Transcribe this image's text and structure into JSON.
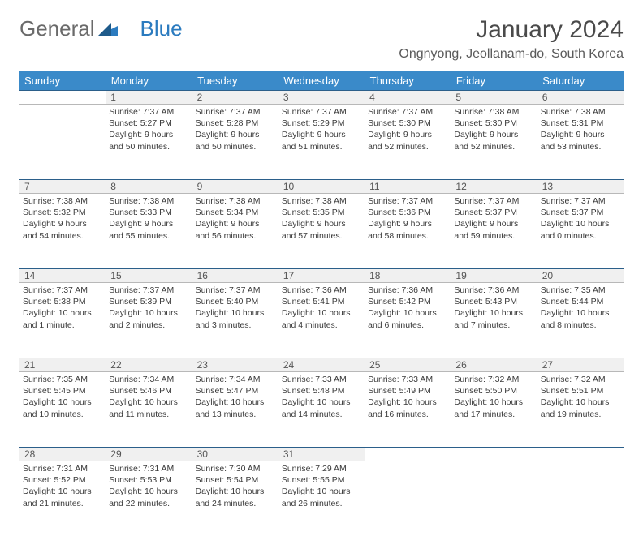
{
  "logo": {
    "general": "General",
    "blue": "Blue"
  },
  "title": "January 2024",
  "location": "Ongnyong, Jeollanam-do, South Korea",
  "colors": {
    "header_bg": "#3a8ac9",
    "header_text": "#ffffff",
    "daynum_bg": "#f0f0f0",
    "daynum_border_top": "#2b5f8a",
    "daynum_border_bottom": "#b8b8b8",
    "body_text": "#3a3a3a",
    "logo_gray": "#6a6a6a",
    "logo_blue": "#2b7bbf"
  },
  "weekdays": [
    "Sunday",
    "Monday",
    "Tuesday",
    "Wednesday",
    "Thursday",
    "Friday",
    "Saturday"
  ],
  "weeks": [
    {
      "nums": [
        "",
        "1",
        "2",
        "3",
        "4",
        "5",
        "6"
      ],
      "cells": [
        {
          "empty": true
        },
        {
          "sunrise": "Sunrise: 7:37 AM",
          "sunset": "Sunset: 5:27 PM",
          "daylight": "Daylight: 9 hours and 50 minutes."
        },
        {
          "sunrise": "Sunrise: 7:37 AM",
          "sunset": "Sunset: 5:28 PM",
          "daylight": "Daylight: 9 hours and 50 minutes."
        },
        {
          "sunrise": "Sunrise: 7:37 AM",
          "sunset": "Sunset: 5:29 PM",
          "daylight": "Daylight: 9 hours and 51 minutes."
        },
        {
          "sunrise": "Sunrise: 7:37 AM",
          "sunset": "Sunset: 5:30 PM",
          "daylight": "Daylight: 9 hours and 52 minutes."
        },
        {
          "sunrise": "Sunrise: 7:38 AM",
          "sunset": "Sunset: 5:30 PM",
          "daylight": "Daylight: 9 hours and 52 minutes."
        },
        {
          "sunrise": "Sunrise: 7:38 AM",
          "sunset": "Sunset: 5:31 PM",
          "daylight": "Daylight: 9 hours and 53 minutes."
        }
      ]
    },
    {
      "nums": [
        "7",
        "8",
        "9",
        "10",
        "11",
        "12",
        "13"
      ],
      "cells": [
        {
          "sunrise": "Sunrise: 7:38 AM",
          "sunset": "Sunset: 5:32 PM",
          "daylight": "Daylight: 9 hours and 54 minutes."
        },
        {
          "sunrise": "Sunrise: 7:38 AM",
          "sunset": "Sunset: 5:33 PM",
          "daylight": "Daylight: 9 hours and 55 minutes."
        },
        {
          "sunrise": "Sunrise: 7:38 AM",
          "sunset": "Sunset: 5:34 PM",
          "daylight": "Daylight: 9 hours and 56 minutes."
        },
        {
          "sunrise": "Sunrise: 7:38 AM",
          "sunset": "Sunset: 5:35 PM",
          "daylight": "Daylight: 9 hours and 57 minutes."
        },
        {
          "sunrise": "Sunrise: 7:37 AM",
          "sunset": "Sunset: 5:36 PM",
          "daylight": "Daylight: 9 hours and 58 minutes."
        },
        {
          "sunrise": "Sunrise: 7:37 AM",
          "sunset": "Sunset: 5:37 PM",
          "daylight": "Daylight: 9 hours and 59 minutes."
        },
        {
          "sunrise": "Sunrise: 7:37 AM",
          "sunset": "Sunset: 5:37 PM",
          "daylight": "Daylight: 10 hours and 0 minutes."
        }
      ]
    },
    {
      "nums": [
        "14",
        "15",
        "16",
        "17",
        "18",
        "19",
        "20"
      ],
      "cells": [
        {
          "sunrise": "Sunrise: 7:37 AM",
          "sunset": "Sunset: 5:38 PM",
          "daylight": "Daylight: 10 hours and 1 minute."
        },
        {
          "sunrise": "Sunrise: 7:37 AM",
          "sunset": "Sunset: 5:39 PM",
          "daylight": "Daylight: 10 hours and 2 minutes."
        },
        {
          "sunrise": "Sunrise: 7:37 AM",
          "sunset": "Sunset: 5:40 PM",
          "daylight": "Daylight: 10 hours and 3 minutes."
        },
        {
          "sunrise": "Sunrise: 7:36 AM",
          "sunset": "Sunset: 5:41 PM",
          "daylight": "Daylight: 10 hours and 4 minutes."
        },
        {
          "sunrise": "Sunrise: 7:36 AM",
          "sunset": "Sunset: 5:42 PM",
          "daylight": "Daylight: 10 hours and 6 minutes."
        },
        {
          "sunrise": "Sunrise: 7:36 AM",
          "sunset": "Sunset: 5:43 PM",
          "daylight": "Daylight: 10 hours and 7 minutes."
        },
        {
          "sunrise": "Sunrise: 7:35 AM",
          "sunset": "Sunset: 5:44 PM",
          "daylight": "Daylight: 10 hours and 8 minutes."
        }
      ]
    },
    {
      "nums": [
        "21",
        "22",
        "23",
        "24",
        "25",
        "26",
        "27"
      ],
      "cells": [
        {
          "sunrise": "Sunrise: 7:35 AM",
          "sunset": "Sunset: 5:45 PM",
          "daylight": "Daylight: 10 hours and 10 minutes."
        },
        {
          "sunrise": "Sunrise: 7:34 AM",
          "sunset": "Sunset: 5:46 PM",
          "daylight": "Daylight: 10 hours and 11 minutes."
        },
        {
          "sunrise": "Sunrise: 7:34 AM",
          "sunset": "Sunset: 5:47 PM",
          "daylight": "Daylight: 10 hours and 13 minutes."
        },
        {
          "sunrise": "Sunrise: 7:33 AM",
          "sunset": "Sunset: 5:48 PM",
          "daylight": "Daylight: 10 hours and 14 minutes."
        },
        {
          "sunrise": "Sunrise: 7:33 AM",
          "sunset": "Sunset: 5:49 PM",
          "daylight": "Daylight: 10 hours and 16 minutes."
        },
        {
          "sunrise": "Sunrise: 7:32 AM",
          "sunset": "Sunset: 5:50 PM",
          "daylight": "Daylight: 10 hours and 17 minutes."
        },
        {
          "sunrise": "Sunrise: 7:32 AM",
          "sunset": "Sunset: 5:51 PM",
          "daylight": "Daylight: 10 hours and 19 minutes."
        }
      ]
    },
    {
      "nums": [
        "28",
        "29",
        "30",
        "31",
        "",
        "",
        ""
      ],
      "cells": [
        {
          "sunrise": "Sunrise: 7:31 AM",
          "sunset": "Sunset: 5:52 PM",
          "daylight": "Daylight: 10 hours and 21 minutes."
        },
        {
          "sunrise": "Sunrise: 7:31 AM",
          "sunset": "Sunset: 5:53 PM",
          "daylight": "Daylight: 10 hours and 22 minutes."
        },
        {
          "sunrise": "Sunrise: 7:30 AM",
          "sunset": "Sunset: 5:54 PM",
          "daylight": "Daylight: 10 hours and 24 minutes."
        },
        {
          "sunrise": "Sunrise: 7:29 AM",
          "sunset": "Sunset: 5:55 PM",
          "daylight": "Daylight: 10 hours and 26 minutes."
        },
        {
          "empty": true
        },
        {
          "empty": true
        },
        {
          "empty": true
        }
      ]
    }
  ]
}
